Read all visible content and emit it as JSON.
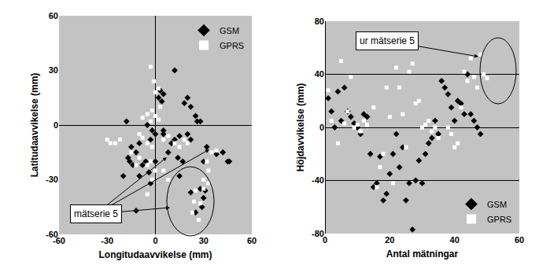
{
  "chart_data": [
    {
      "type": "scatter",
      "xlabel": "Longitudaavvikelse (mm)",
      "ylabel": "Latitudaavvikelse (mm)",
      "xlim": [
        -60,
        60
      ],
      "xticks": [
        -60,
        -30,
        0,
        30,
        60
      ],
      "ylim": [
        -60,
        60
      ],
      "yticks": [
        -60,
        -30,
        0,
        30,
        60
      ],
      "grid": false,
      "legend": "upper right",
      "annotations": [
        {
          "text": "mätserie 5"
        }
      ],
      "series": [
        {
          "name": "GSM",
          "color": "#000000",
          "marker": "diamond",
          "x": [
            12,
            3,
            5,
            2,
            4,
            20,
            18,
            22,
            25,
            26,
            28,
            -18,
            -5,
            -2,
            0,
            5,
            -3,
            -10,
            -15,
            -12,
            -17,
            -16,
            -14,
            -8,
            -6,
            -20,
            -10,
            -3,
            -4,
            -12,
            10,
            12,
            15,
            20,
            22,
            8,
            14,
            17,
            15,
            30,
            32,
            42,
            45,
            46,
            38,
            28,
            30,
            31,
            22,
            29,
            25,
            5,
            0
          ],
          "y": [
            30,
            19,
            17,
            15,
            13,
            15,
            12,
            10,
            5,
            2,
            2,
            2,
            0,
            -3,
            -5,
            -3,
            -8,
            -10,
            -12,
            -15,
            -18,
            -20,
            -22,
            -22,
            -20,
            -28,
            -28,
            -32,
            -26,
            -47,
            -10,
            -8,
            -6,
            -5,
            -8,
            -15,
            -18,
            -20,
            -28,
            -20,
            -12,
            -15,
            -20,
            -20,
            -16,
            -35,
            -40,
            -36,
            -37,
            -45,
            -48,
            -5,
            -20
          ]
        },
        {
          "name": "GPRS",
          "color": "#ffffff",
          "marker": "square",
          "x": [
            -3,
            -1,
            2,
            0,
            3,
            -2,
            -5,
            0,
            -8,
            2,
            -3,
            -30,
            -28,
            -22,
            -25,
            -10,
            -8,
            -5,
            -2,
            5,
            8,
            12,
            15,
            18,
            20,
            -15,
            -10,
            -5,
            -12,
            0,
            5,
            8,
            -2,
            -5,
            -3,
            35,
            38,
            32,
            30,
            25,
            28,
            23,
            27,
            33,
            33,
            30,
            24
          ],
          "y": [
            32,
            24,
            20,
            18,
            10,
            8,
            6,
            5,
            4,
            3,
            2,
            -8,
            -10,
            -8,
            -10,
            -5,
            -7,
            -10,
            -12,
            -8,
            -6,
            -10,
            -12,
            -8,
            -10,
            -15,
            -18,
            -22,
            -22,
            -25,
            -25,
            -30,
            -30,
            -38,
            -20,
            -15,
            -14,
            -20,
            -30,
            -36,
            -43,
            -48,
            -52,
            -32,
            -25,
            -35,
            -42
          ]
        }
      ]
    },
    {
      "type": "scatter",
      "xlabel": "Antal mätningar",
      "ylabel": "Höjdavvikelse (mm)",
      "xlim": [
        0,
        60
      ],
      "xticks": [
        0,
        20,
        40,
        60
      ],
      "ylim": [
        -80,
        80
      ],
      "yticks": [
        -80,
        -40,
        0,
        40,
        80
      ],
      "grid": "y",
      "legend": "lower right",
      "annotations": [
        {
          "text": "ur mätserie 5"
        }
      ],
      "series": [
        {
          "name": "GSM",
          "color": "#000000",
          "marker": "diamond",
          "x": [
            1,
            2,
            3,
            4,
            5,
            6,
            7,
            8,
            9,
            10,
            11,
            12,
            13,
            14,
            15,
            16,
            17,
            18,
            19,
            20,
            21,
            22,
            23,
            24,
            25,
            26,
            27,
            28,
            29,
            30,
            31,
            32,
            33,
            34,
            35,
            36,
            37,
            38,
            39,
            40,
            41,
            42,
            43,
            44,
            45,
            46,
            47,
            48
          ],
          "y": [
            22,
            12,
            0,
            27,
            5,
            30,
            12,
            8,
            3,
            0,
            -5,
            10,
            8,
            -20,
            -45,
            -42,
            -22,
            -55,
            -50,
            -35,
            -20,
            -5,
            -30,
            -15,
            -55,
            -42,
            -77,
            -40,
            -25,
            -42,
            -20,
            -12,
            -8,
            5,
            -5,
            35,
            30,
            25,
            15,
            5,
            20,
            18,
            10,
            40,
            10,
            5,
            0,
            -5
          ]
        },
        {
          "name": "GPRS",
          "color": "#ffffff",
          "marker": "square",
          "x": [
            1,
            2,
            4,
            5,
            6,
            7,
            8,
            9,
            10,
            11,
            12,
            13,
            15,
            16,
            17,
            18,
            19,
            20,
            21,
            22,
            23,
            24,
            25,
            26,
            27,
            28,
            29,
            30,
            31,
            32,
            33,
            34,
            35,
            38,
            39,
            40,
            41,
            42,
            43,
            44,
            45,
            46,
            47,
            48,
            49,
            50
          ],
          "y": [
            28,
            5,
            -12,
            50,
            3,
            12,
            38,
            0,
            2,
            -3,
            5,
            2,
            15,
            -45,
            -30,
            -20,
            30,
            8,
            -42,
            45,
            30,
            10,
            -15,
            42,
            48,
            18,
            20,
            0,
            2,
            5,
            -3,
            0,
            -8,
            0,
            -5,
            -15,
            -12,
            15,
            42,
            35,
            52,
            38,
            30,
            55,
            40,
            37
          ]
        }
      ]
    }
  ]
}
